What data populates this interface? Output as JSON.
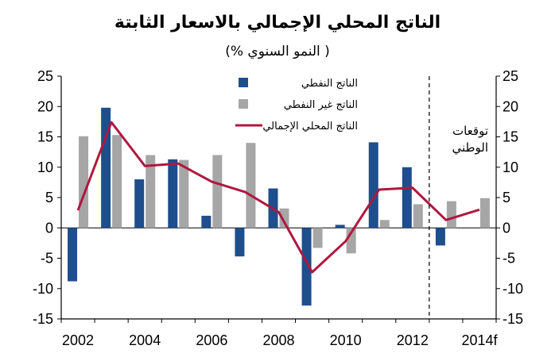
{
  "title": "الناتج المحلي الإجمالي بالاسعار الثابتة",
  "subtitle": "( النمو السنوي %)",
  "chart_data": {
    "type": "bar",
    "x": [
      "2002",
      "2003",
      "2004",
      "2005",
      "2006",
      "2007",
      "2008",
      "2009",
      "2010",
      "2011",
      "2012",
      "2013",
      "2014f"
    ],
    "xtick_labels": [
      "2002",
      "",
      "2004",
      "",
      "2006",
      "",
      "2008",
      "",
      "2010",
      "",
      "2012",
      "",
      "2014f"
    ],
    "ylim": [
      -15,
      25
    ],
    "yticks": [
      25,
      20,
      15,
      10,
      5,
      0,
      -5,
      -10,
      -15
    ],
    "grid": false,
    "legend_position": "top-right",
    "forecast_label_lines": [
      "توقعات",
      "الوطني"
    ],
    "forecast_start": "2013",
    "series": [
      {
        "name": "الناتج النفطي",
        "kind": "bar",
        "color": "#1F4E8C",
        "values": [
          -8.8,
          19.8,
          8.0,
          11.3,
          2.0,
          -4.7,
          6.5,
          -12.8,
          0.5,
          14.1,
          10.0,
          -2.9,
          null
        ]
      },
      {
        "name": "الناتج غير النفطي",
        "kind": "bar",
        "color": "#A6A6A6",
        "values": [
          15.1,
          15.3,
          12.0,
          11.2,
          12.0,
          14.0,
          3.2,
          -3.3,
          -4.2,
          1.3,
          3.9,
          4.4,
          4.9
        ]
      },
      {
        "name": "الناتج المحلي الإجمالي",
        "kind": "line",
        "color": "#B0173F",
        "values": [
          2.9,
          17.4,
          10.2,
          10.6,
          7.6,
          5.9,
          2.6,
          -7.3,
          -2.2,
          6.3,
          6.6,
          1.3,
          3.0
        ]
      }
    ]
  }
}
